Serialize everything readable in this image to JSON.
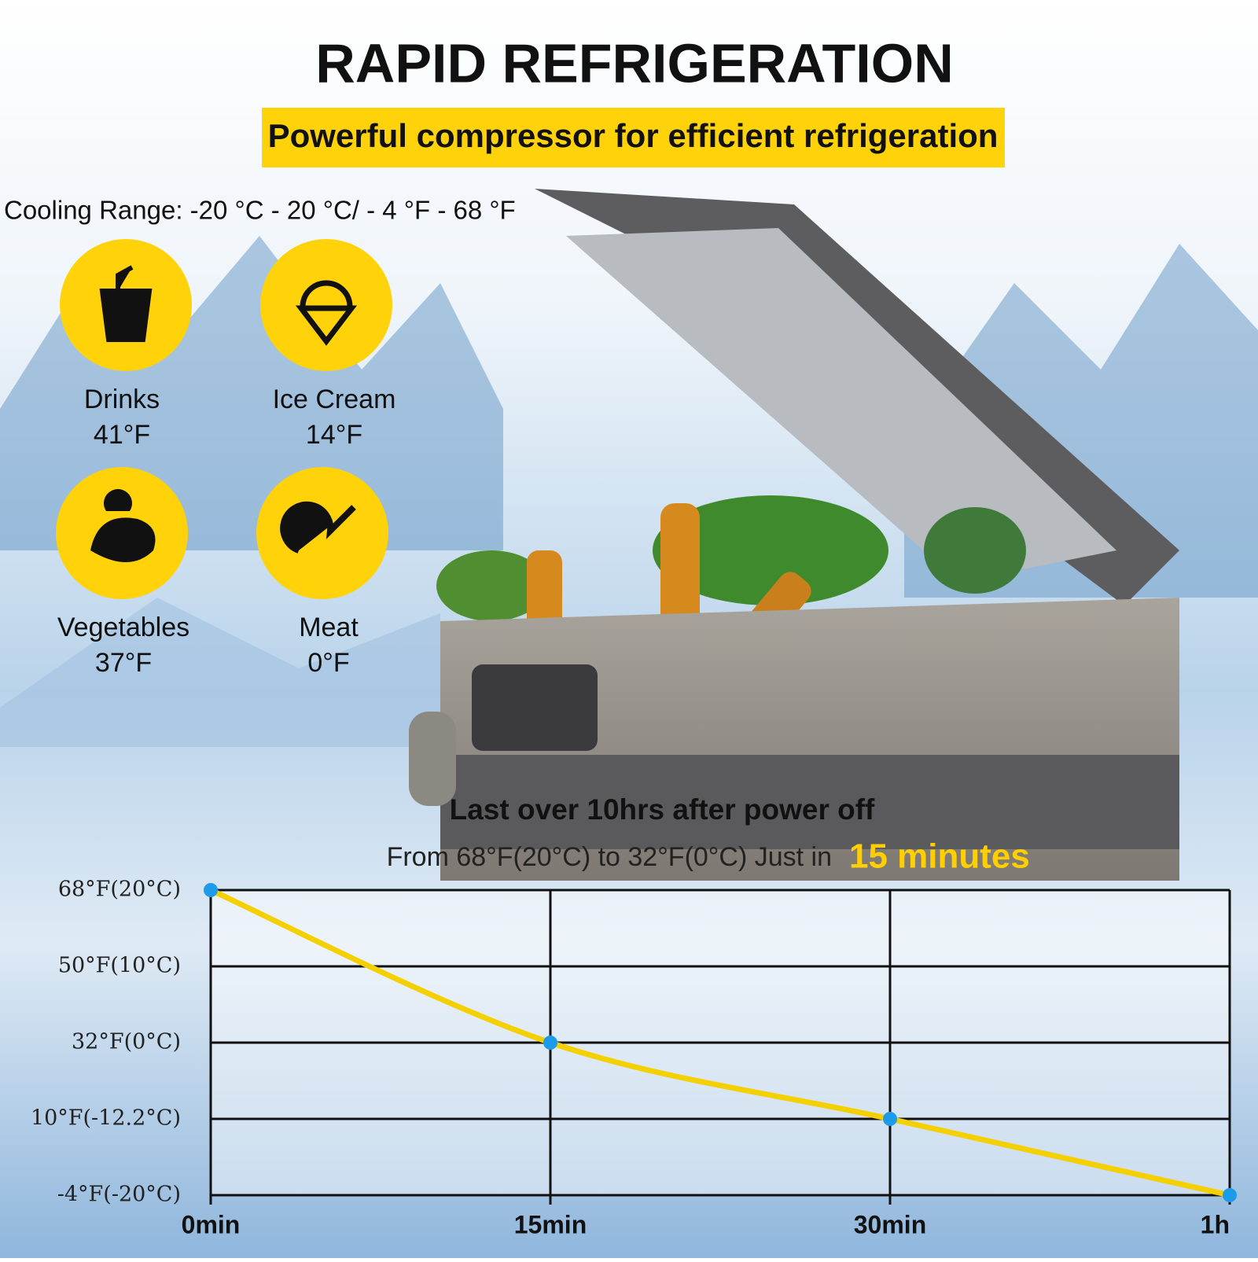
{
  "header": {
    "title": "RAPID REFRIGERATION",
    "subtitle": "Powerful compressor for efficient refrigeration"
  },
  "cooling_range": "Cooling Range: -20 °C - 20 °C/ - 4 °F - 68 °F",
  "foods": [
    {
      "name": "Drinks",
      "temperature": "41°F"
    },
    {
      "name": "Ice Cream",
      "temperature": "14°F"
    },
    {
      "name": "Vegetables",
      "temperature": "37°F"
    },
    {
      "name": "Meat",
      "temperature": "0°F"
    }
  ],
  "chart_data": {
    "type": "line",
    "title": "Last over 10hrs after power off",
    "subtitle": "From 68°F(20°C) to 32°F(0°C) Just in",
    "highlight": "15 minutes",
    "categories": [
      "0min",
      "15min",
      "30min",
      "1h"
    ],
    "series": [
      {
        "values": [
          68,
          32,
          10,
          -4
        ],
        "color": "#f5d000",
        "marker_color": "#1e9be8"
      }
    ],
    "yticks": [
      {
        "value": 68,
        "label": "68°F(20°C)"
      },
      {
        "value": 50,
        "label": "50°F(10°C)"
      },
      {
        "value": 32,
        "label": "32°F(0°C)"
      },
      {
        "value": 10,
        "label": "10°F(-12.2°C)"
      },
      {
        "value": -4,
        "label": "-4°F(-20°C)"
      }
    ],
    "ylim": [
      -4,
      68
    ],
    "grid": true
  }
}
